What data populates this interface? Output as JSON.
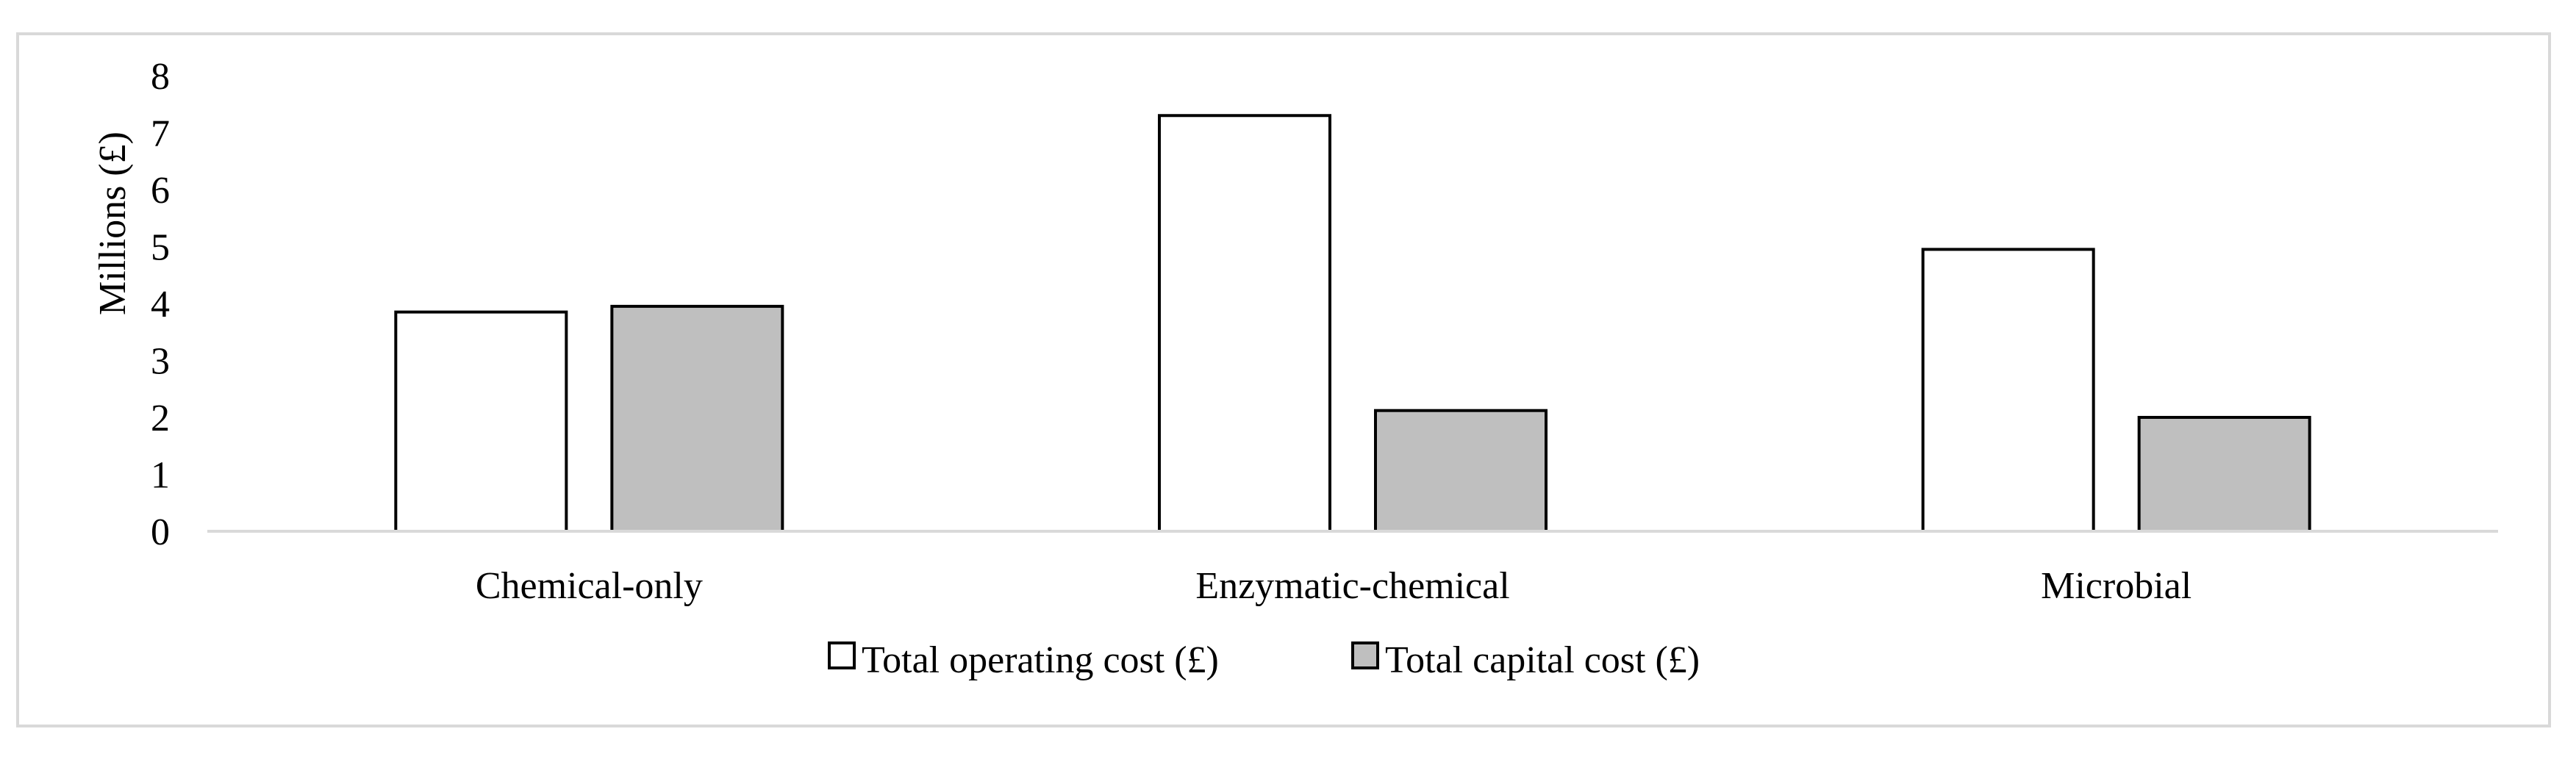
{
  "chart_data": {
    "type": "bar",
    "title": "",
    "xlabel": "",
    "ylabel": "Millions (£)",
    "ylim": [
      0,
      8
    ],
    "yticks": [
      "0",
      "1",
      "2",
      "3",
      "4",
      "5",
      "6",
      "7",
      "8"
    ],
    "categories": [
      "Chemical-only",
      "Enzymatic-chemical",
      "Microbial"
    ],
    "series": [
      {
        "name": "Total operating cost (£)",
        "values": [
          3.85,
          7.3,
          4.95
        ],
        "color": "#ffffff"
      },
      {
        "name": "Total capital cost (£)",
        "values": [
          3.95,
          2.12,
          2.0
        ],
        "color": "#bfbfbf"
      }
    ],
    "grid": false,
    "legend_position": "bottom"
  }
}
